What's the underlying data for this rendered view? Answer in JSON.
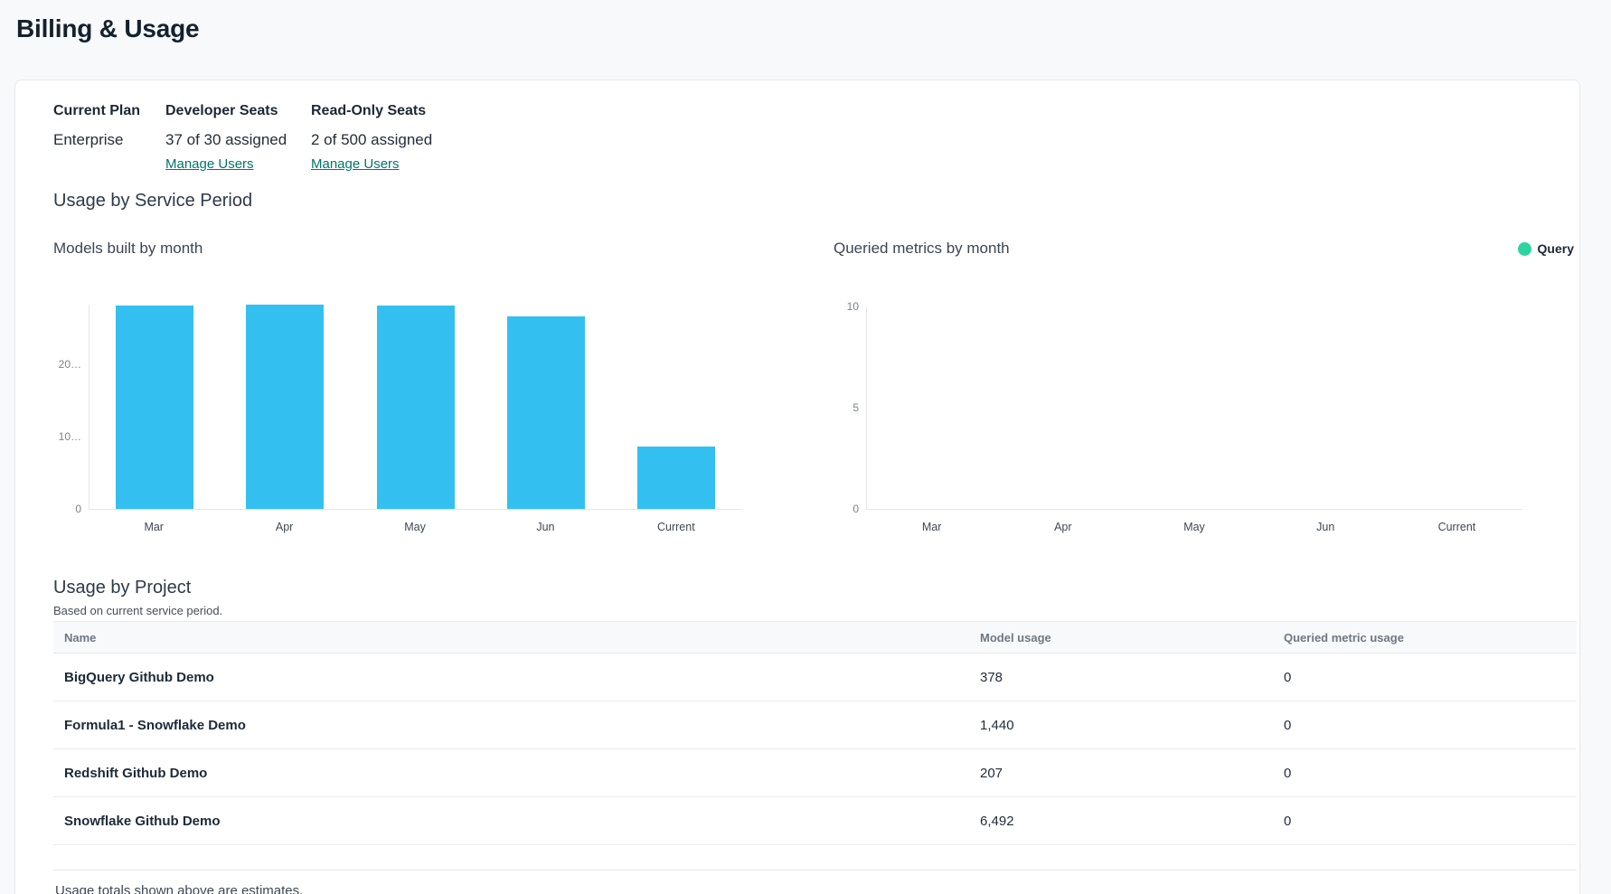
{
  "page": {
    "title": "Billing & Usage"
  },
  "plan": {
    "columns": [
      {
        "label": "Current Plan",
        "value": "Enterprise"
      },
      {
        "label": "Developer Seats",
        "value": "37 of 30 assigned",
        "link": "Manage Users"
      },
      {
        "label": "Read-Only Seats",
        "value": "2 of 500 assigned",
        "link": "Manage Users"
      }
    ]
  },
  "usage_section": {
    "title": "Usage by Service Period"
  },
  "chart_data": [
    {
      "type": "bar",
      "title": "Models built by month",
      "categories": [
        "Mar",
        "Apr",
        "May",
        "Jun",
        "Current"
      ],
      "values": [
        28200,
        28300,
        28200,
        26700,
        8700
      ],
      "xlabel": "",
      "ylabel": "",
      "ylim": [
        0,
        28300
      ],
      "y_ticks": [
        {
          "label": "0",
          "value": 0
        },
        {
          "label": "10…",
          "value": 10000
        },
        {
          "label": "20…",
          "value": 20000
        }
      ],
      "bar_color": "#33c0f0",
      "grid": false,
      "legend_position": "none"
    },
    {
      "type": "bar",
      "title": "Queried metrics by month",
      "categories": [
        "Mar",
        "Apr",
        "May",
        "Jun",
        "Current"
      ],
      "series": [
        {
          "name": "Query",
          "values": [
            0,
            0,
            0,
            0,
            0
          ],
          "color": "#2dd4a0"
        }
      ],
      "xlabel": "",
      "ylabel": "",
      "ylim": [
        0,
        10
      ],
      "y_ticks": [
        {
          "label": "0",
          "value": 0
        },
        {
          "label": "5",
          "value": 5
        },
        {
          "label": "10",
          "value": 10
        }
      ],
      "grid": false,
      "legend": {
        "label": "Query",
        "color": "#2dd4a0",
        "position": "top-right"
      }
    }
  ],
  "project_section": {
    "title": "Usage by Project",
    "subtitle": "Based on current service period.",
    "table": {
      "headers": [
        "Name",
        "Model usage",
        "Queried metric usage"
      ],
      "rows": [
        {
          "name": "BigQuery Github Demo",
          "model_usage": "378",
          "queried_metric_usage": "0"
        },
        {
          "name": "Formula1 - Snowflake Demo",
          "model_usage": "1,440",
          "queried_metric_usage": "0"
        },
        {
          "name": "Redshift Github Demo",
          "model_usage": "207",
          "queried_metric_usage": "0"
        },
        {
          "name": "Snowflake Github Demo",
          "model_usage": "6,492",
          "queried_metric_usage": "0"
        }
      ]
    },
    "footnote": "Usage totals shown above are estimates."
  },
  "colors": {
    "bar_blue": "#33c0f0",
    "legend_green": "#2dd4a0",
    "link_teal": "#00766c"
  }
}
